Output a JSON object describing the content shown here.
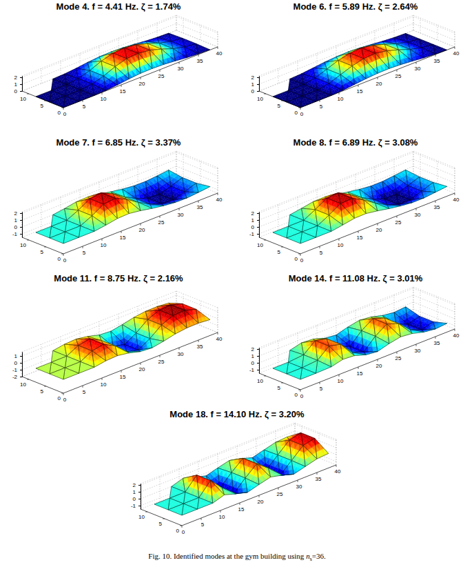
{
  "chart_data": [
    {
      "type": "surface",
      "title": "Mode 4. f = 4.41 Hz. ζ = 1.74%",
      "x": [
        0,
        4,
        8,
        11,
        14,
        17,
        20,
        23,
        26,
        29,
        32,
        35,
        38
      ],
      "y": [
        0,
        4,
        8,
        12
      ],
      "z": [
        [
          0,
          0,
          0,
          0.06,
          0.21,
          0.42,
          0.57,
          0.6,
          0.54,
          0.39,
          0.21,
          0.09,
          0.03
        ],
        [
          0,
          0,
          0,
          0.2,
          0.7,
          1.4,
          1.9,
          2,
          1.8,
          1.3,
          0.7,
          0.3,
          0.1
        ],
        [
          0,
          0,
          0,
          0.2,
          0.7,
          1.4,
          1.9,
          2,
          1.8,
          1.3,
          0.7,
          0.3,
          0.1
        ],
        [
          null,
          null,
          0,
          0.06,
          0.21,
          0.42,
          0.57,
          0.6,
          0.54,
          0.39,
          0.21,
          0.09,
          0.03
        ]
      ],
      "xlim": [
        0,
        40
      ],
      "xticks": [
        0,
        5,
        10,
        15,
        20,
        25,
        30,
        35,
        40
      ],
      "ylim": [
        0,
        12
      ],
      "yticks": [
        0,
        5,
        10
      ],
      "zlim": [
        0,
        2.2
      ],
      "zticks": [
        0,
        1,
        2
      ]
    },
    {
      "type": "surface",
      "title": "Mode 6. f = 5.89 Hz. ζ = 2.64%",
      "x": [
        0,
        4,
        8,
        11,
        14,
        17,
        20,
        23,
        26,
        29,
        32,
        35,
        38
      ],
      "y": [
        0,
        4,
        8,
        12
      ],
      "z": [
        [
          0,
          0,
          0,
          0.09,
          0.27,
          0.45,
          0.57,
          0.6,
          0.51,
          0.36,
          0.18,
          0.06,
          0
        ],
        [
          0,
          0,
          0,
          0.3,
          0.9,
          1.5,
          1.9,
          2,
          1.7,
          1.2,
          0.6,
          0.2,
          0
        ],
        [
          0,
          0,
          0,
          0.3,
          0.9,
          1.5,
          1.9,
          2,
          1.7,
          1.2,
          0.6,
          0.2,
          0
        ],
        [
          null,
          null,
          0,
          0.09,
          0.27,
          0.45,
          0.57,
          0.6,
          0.51,
          0.36,
          0.18,
          0.06,
          0
        ]
      ],
      "xlim": [
        0,
        40
      ],
      "xticks": [
        0,
        5,
        10,
        15,
        20,
        25,
        30,
        35,
        40
      ],
      "ylim": [
        0,
        12
      ],
      "yticks": [
        0,
        5,
        10
      ],
      "zlim": [
        0,
        2.2
      ],
      "zticks": [
        0,
        1,
        2
      ]
    },
    {
      "type": "surface",
      "title": "Mode 7. f = 6.85 Hz. ζ = 3.37%",
      "x": [
        0,
        4,
        8,
        11,
        14,
        17,
        20,
        23,
        26,
        29,
        32,
        35,
        38
      ],
      "y": [
        0,
        4,
        8,
        12
      ],
      "z": [
        [
          0,
          0,
          0,
          0.24,
          0.54,
          0.6,
          0.36,
          0.03,
          -0.24,
          -0.42,
          -0.45,
          -0.3,
          -0.12
        ],
        [
          0,
          0,
          0,
          0.8,
          1.8,
          2,
          1.2,
          0.1,
          -0.8,
          -1.4,
          -1.5,
          -1,
          -0.4
        ],
        [
          0,
          0,
          0,
          0.8,
          1.8,
          2,
          1.2,
          0.1,
          -0.8,
          -1.4,
          -1.5,
          -1,
          -0.4
        ],
        [
          null,
          null,
          0,
          0.24,
          0.54,
          0.6,
          0.36,
          0.03,
          -0.24,
          -0.42,
          -0.45,
          -0.3,
          -0.12
        ]
      ],
      "xlim": [
        0,
        40
      ],
      "xticks": [
        0,
        5,
        10,
        15,
        20,
        25,
        30,
        35,
        40
      ],
      "ylim": [
        0,
        12
      ],
      "yticks": [
        0,
        5,
        10
      ],
      "zlim": [
        -1.5,
        2.2
      ],
      "zticks": [
        -1,
        0,
        1,
        2
      ]
    },
    {
      "type": "surface",
      "title": "Mode 8. f = 6.89 Hz. ζ = 3.08%",
      "x": [
        0,
        4,
        8,
        11,
        14,
        17,
        20,
        23,
        26,
        29,
        32,
        35,
        38
      ],
      "y": [
        0,
        4,
        8,
        12
      ],
      "z": [
        [
          0,
          0,
          0,
          0.27,
          0.57,
          0.6,
          0.33,
          0,
          -0.27,
          -0.45,
          -0.45,
          -0.27,
          -0.09
        ],
        [
          0,
          0,
          0,
          0.9,
          1.9,
          2,
          1.1,
          0,
          -0.9,
          -1.5,
          -1.5,
          -0.9,
          -0.3
        ],
        [
          0,
          0,
          0,
          0.9,
          1.9,
          2,
          1.1,
          0,
          -0.9,
          -1.5,
          -1.5,
          -0.9,
          -0.3
        ],
        [
          null,
          null,
          0,
          0.27,
          0.57,
          0.6,
          0.33,
          0,
          -0.27,
          -0.45,
          -0.45,
          -0.27,
          -0.09
        ]
      ],
      "xlim": [
        0,
        40
      ],
      "xticks": [
        0,
        5,
        10,
        15,
        20,
        25,
        30,
        35,
        40
      ],
      "ylim": [
        0,
        12
      ],
      "yticks": [
        0,
        5,
        10
      ],
      "zlim": [
        -1.5,
        2.2
      ],
      "zticks": [
        -1,
        0,
        1,
        2
      ]
    },
    {
      "type": "surface",
      "title": "Mode 11. f = 8.75 Hz. ζ = 2.16%",
      "x": [
        0,
        4,
        8,
        11,
        14,
        17,
        20,
        23,
        26,
        29,
        32,
        35,
        38
      ],
      "y": [
        0,
        4,
        8,
        12
      ],
      "z": [
        [
          0,
          0,
          0,
          0.27,
          0.36,
          0.09,
          -0.36,
          -0.48,
          -0.18,
          0.21,
          0.42,
          0.45,
          0.3
        ],
        [
          0,
          0,
          0,
          0.9,
          1.2,
          0.3,
          -1.2,
          -1.6,
          -0.6,
          0.7,
          1.4,
          1.5,
          1
        ],
        [
          0,
          0,
          0,
          0.9,
          1.2,
          0.3,
          -1.2,
          -1.6,
          -0.6,
          0.7,
          1.4,
          1.5,
          1
        ],
        [
          null,
          null,
          0,
          0.27,
          0.36,
          0.09,
          -0.36,
          -0.48,
          -0.18,
          0.21,
          0.42,
          0.45,
          0.3
        ]
      ],
      "xlim": [
        0,
        40
      ],
      "xticks": [
        0,
        5,
        10,
        15,
        20,
        25,
        30,
        35,
        40
      ],
      "ylim": [
        0,
        12
      ],
      "yticks": [
        0,
        5,
        10
      ],
      "zlim": [
        -2,
        1.6
      ],
      "zticks": [
        -2,
        -1,
        0,
        1
      ]
    },
    {
      "type": "surface",
      "title": "Mode 14. f = 11.08 Hz. ζ = 3.01%",
      "x": [
        0,
        4,
        8,
        11,
        14,
        17,
        20,
        23,
        26,
        29,
        32,
        35,
        38
      ],
      "y": [
        0,
        4,
        8,
        12
      ],
      "z": [
        [
          0,
          0,
          0.06,
          0.48,
          0.36,
          -0.18,
          -0.36,
          0.12,
          0.45,
          0.27,
          -0.18,
          -0.39,
          -0.24
        ],
        [
          0,
          0,
          0.2,
          1.6,
          1.2,
          -0.6,
          -1.2,
          0.4,
          1.5,
          0.9,
          -0.6,
          -1.3,
          -0.8
        ],
        [
          0,
          0,
          0.2,
          1.6,
          1.2,
          -0.6,
          -1.2,
          0.4,
          1.5,
          0.9,
          -0.6,
          -1.3,
          -0.8
        ],
        [
          null,
          null,
          0.06,
          0.48,
          0.36,
          -0.18,
          -0.36,
          0.12,
          0.45,
          0.27,
          -0.18,
          -0.39,
          -0.24
        ]
      ],
      "xlim": [
        0,
        40
      ],
      "xticks": [
        0,
        5,
        10,
        15,
        20,
        25,
        30,
        35,
        40
      ],
      "ylim": [
        0,
        12
      ],
      "yticks": [
        0,
        5,
        10
      ],
      "zlim": [
        -1.5,
        2.2
      ],
      "zticks": [
        -1,
        0,
        1,
        2
      ]
    },
    {
      "type": "surface",
      "title": "Mode 18. f = 14.10 Hz. ζ = 3.20%",
      "x": [
        0,
        4,
        8,
        11,
        14,
        17,
        20,
        23,
        26,
        29,
        32,
        35,
        38
      ],
      "y": [
        0,
        4,
        8,
        12
      ],
      "z": [
        [
          0,
          0,
          0,
          0.54,
          0.03,
          -0.42,
          0.06,
          0.48,
          0.09,
          -0.42,
          0.03,
          0.48,
          0.6
        ],
        [
          0,
          0,
          0,
          1.8,
          0.1,
          -1.4,
          0.2,
          1.6,
          0.3,
          -1.4,
          0.1,
          1.6,
          2
        ],
        [
          0,
          0,
          0,
          1.8,
          0.1,
          -1.4,
          0.2,
          1.6,
          0.3,
          -1.4,
          0.1,
          1.6,
          2
        ],
        [
          null,
          null,
          0,
          0.54,
          0.03,
          -0.42,
          0.06,
          0.48,
          0.09,
          -0.42,
          0.03,
          0.48,
          0.6
        ]
      ],
      "xlim": [
        0,
        40
      ],
      "xticks": [
        0,
        5,
        10,
        15,
        20,
        25,
        30,
        35,
        40
      ],
      "ylim": [
        0,
        12
      ],
      "yticks": [
        0,
        5,
        10
      ],
      "zlim": [
        -1.5,
        2.2
      ],
      "zticks": [
        -1,
        0,
        1,
        2
      ]
    }
  ],
  "caption": {
    "text": "Fig. 10. Identified modes at the gym building using ",
    "symbol": "n",
    "subscript": "s",
    "value": "=36."
  }
}
